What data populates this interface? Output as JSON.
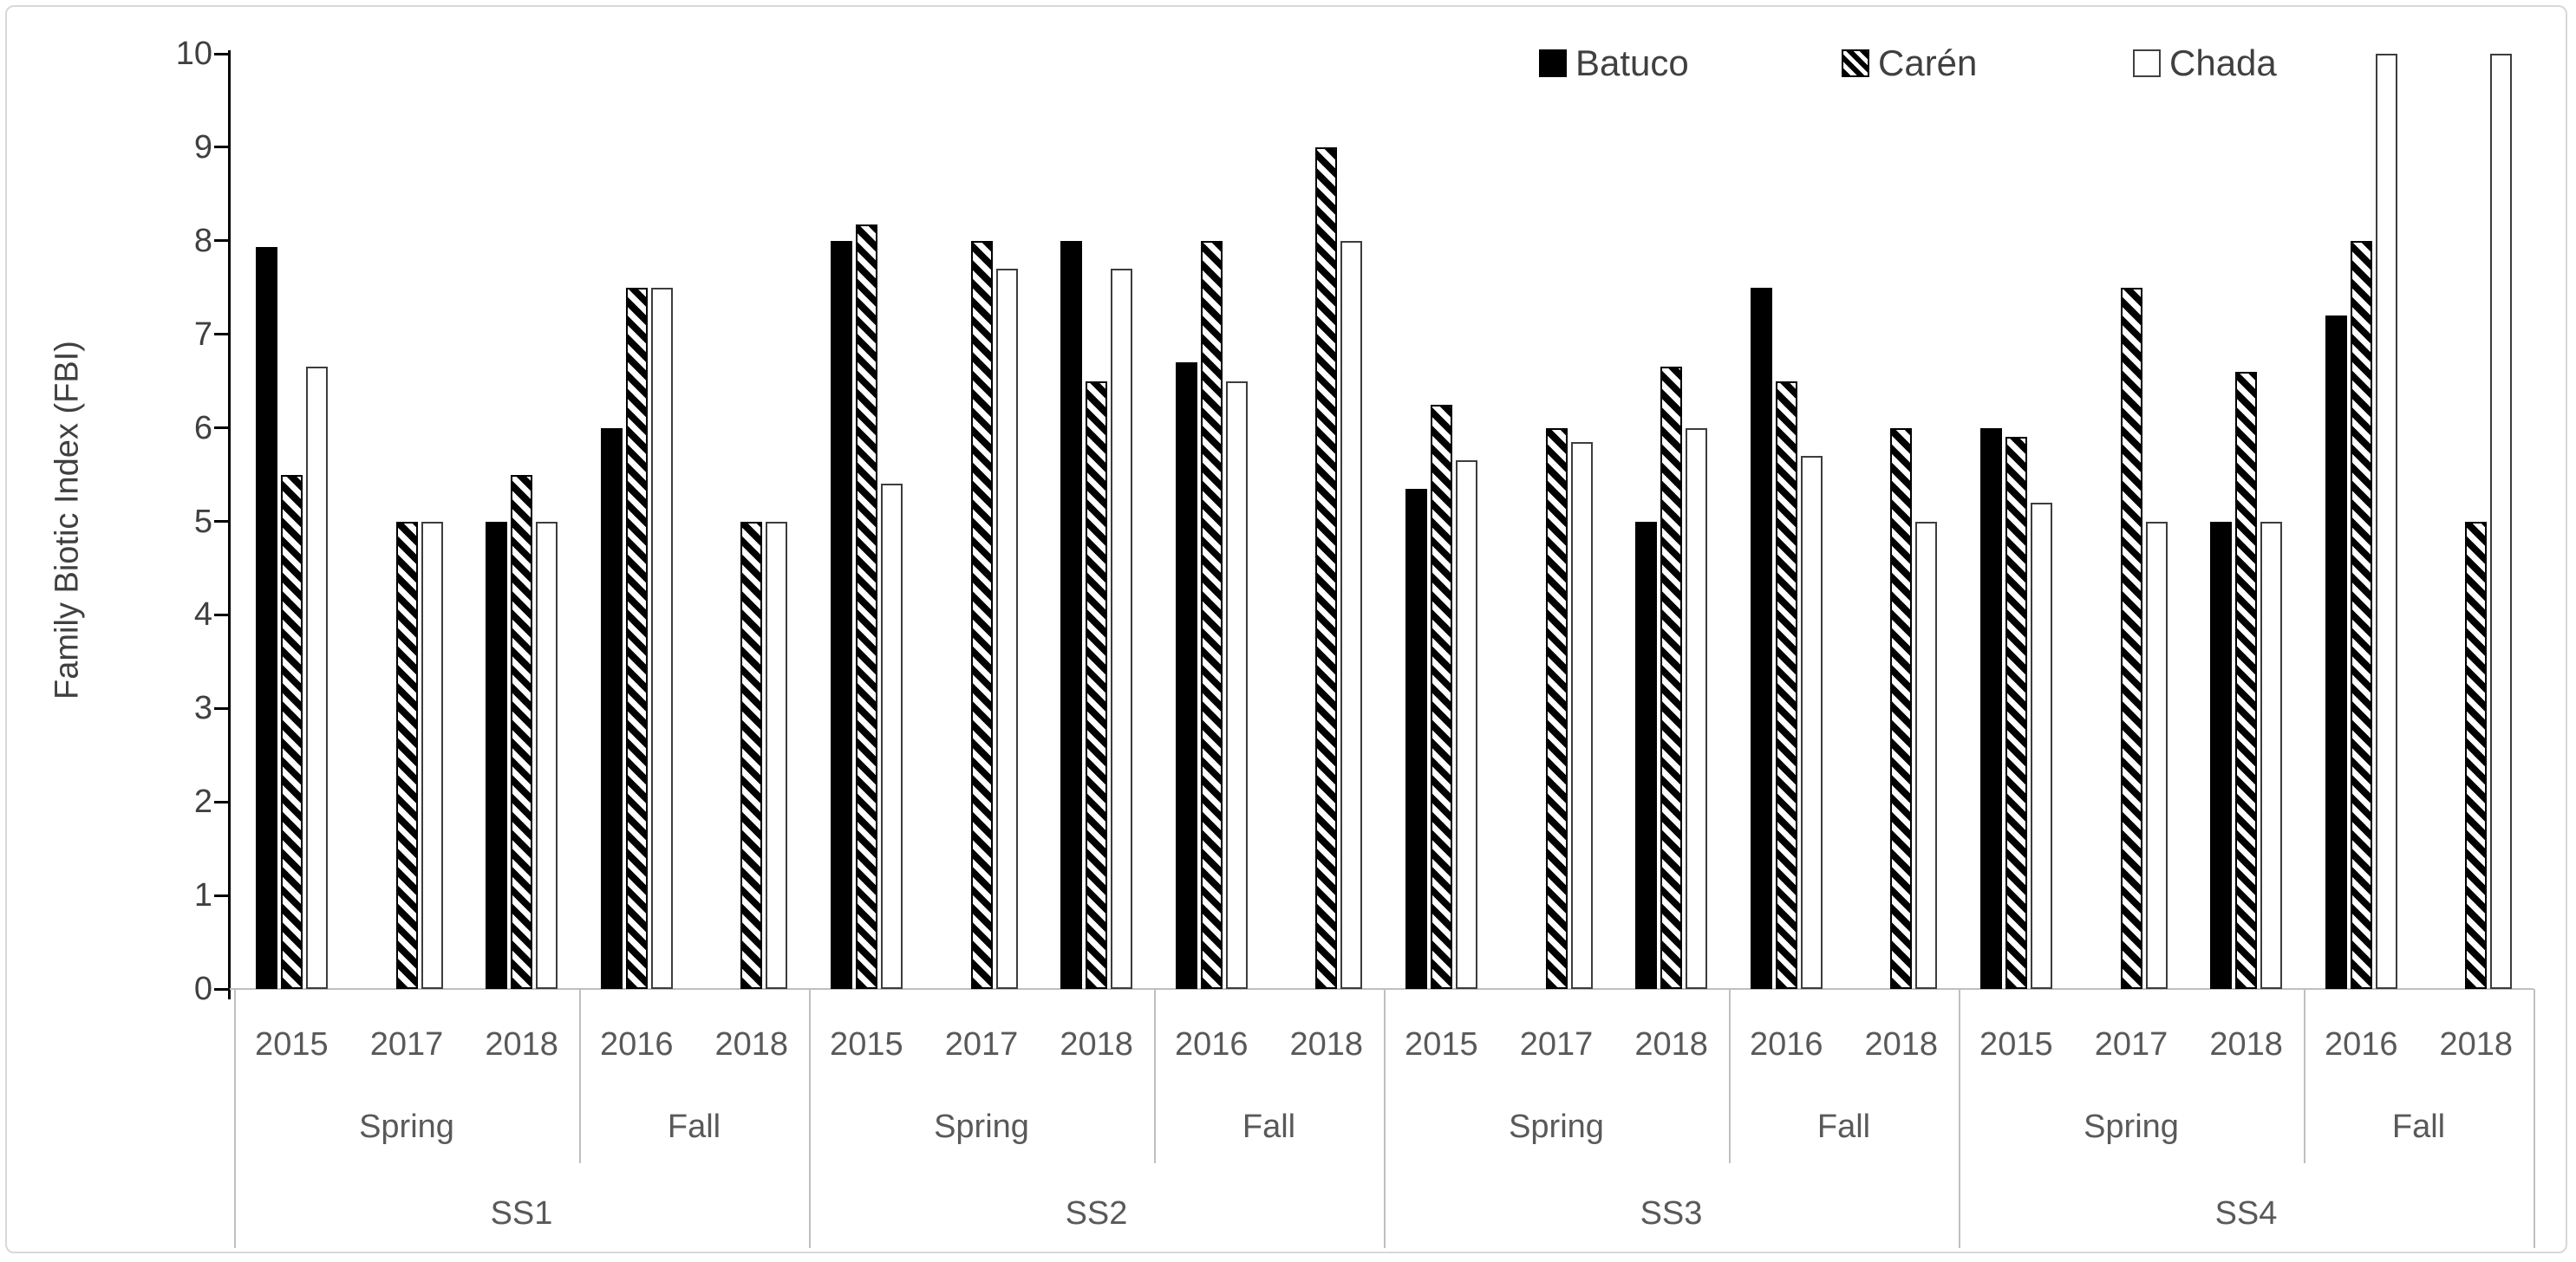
{
  "chart_data": {
    "type": "bar",
    "title": "",
    "xlabel": "",
    "ylabel": "Family Biotic Index (FBI)",
    "ylim": [
      0,
      10
    ],
    "yticks": [
      "0",
      "1",
      "2",
      "3",
      "4",
      "5",
      "6",
      "7",
      "8",
      "9",
      "10"
    ],
    "grid": false,
    "legend_position": "top-right",
    "series": [
      {
        "name": "Batuco",
        "fill": "solid-black"
      },
      {
        "name": "Carén",
        "fill": "diagonal-hatch"
      },
      {
        "name": "Chada",
        "fill": "white-outline"
      }
    ],
    "colors": {
      "bar_outline": "#000000",
      "separator": "#bfbfbf",
      "axis": "#000000",
      "tick_text": "#404040",
      "category_text": "#595959"
    },
    "sites": [
      {
        "label": "SS1",
        "seasons": [
          {
            "label": "Spring",
            "groups": [
              {
                "year": "2015",
                "values": {
                  "Batuco": 7.93,
                  "Caren": 5.5,
                  "Chada": 6.65
                }
              },
              {
                "year": "2017",
                "values": {
                  "Batuco": null,
                  "Caren": 5.0,
                  "Chada": 5.0
                }
              },
              {
                "year": "2018",
                "values": {
                  "Batuco": 5.0,
                  "Caren": 5.5,
                  "Chada": 5.0
                }
              }
            ]
          },
          {
            "label": "Fall",
            "groups": [
              {
                "year": "2016",
                "values": {
                  "Batuco": 6.0,
                  "Caren": 7.5,
                  "Chada": 7.5
                }
              },
              {
                "year": "2018",
                "values": {
                  "Batuco": null,
                  "Caren": 5.0,
                  "Chada": 5.0
                }
              }
            ]
          }
        ]
      },
      {
        "label": "SS2",
        "seasons": [
          {
            "label": "Spring",
            "groups": [
              {
                "year": "2015",
                "values": {
                  "Batuco": 8.0,
                  "Caren": 8.17,
                  "Chada": 5.4
                }
              },
              {
                "year": "2017",
                "values": {
                  "Batuco": null,
                  "Caren": 8.0,
                  "Chada": 7.7
                }
              },
              {
                "year": "2018",
                "values": {
                  "Batuco": 8.0,
                  "Caren": 6.5,
                  "Chada": 7.7
                }
              }
            ]
          },
          {
            "label": "Fall",
            "groups": [
              {
                "year": "2016",
                "values": {
                  "Batuco": 6.7,
                  "Caren": 8.0,
                  "Chada": 6.5
                }
              },
              {
                "year": "2018",
                "values": {
                  "Batuco": null,
                  "Caren": 9.0,
                  "Chada": 8.0
                }
              }
            ]
          }
        ]
      },
      {
        "label": "SS3",
        "seasons": [
          {
            "label": "Spring",
            "groups": [
              {
                "year": "2015",
                "values": {
                  "Batuco": 5.35,
                  "Caren": 6.25,
                  "Chada": 5.65
                }
              },
              {
                "year": "2017",
                "values": {
                  "Batuco": null,
                  "Caren": 6.0,
                  "Chada": 5.85
                }
              },
              {
                "year": "2018",
                "values": {
                  "Batuco": 5.0,
                  "Caren": 6.65,
                  "Chada": 6.0
                }
              }
            ]
          },
          {
            "label": "Fall",
            "groups": [
              {
                "year": "2016",
                "values": {
                  "Batuco": 7.5,
                  "Caren": 6.5,
                  "Chada": 5.7
                }
              },
              {
                "year": "2018",
                "values": {
                  "Batuco": null,
                  "Caren": 6.0,
                  "Chada": 5.0
                }
              }
            ]
          }
        ]
      },
      {
        "label": "SS4",
        "seasons": [
          {
            "label": "Spring",
            "groups": [
              {
                "year": "2015",
                "values": {
                  "Batuco": 6.0,
                  "Caren": 5.9,
                  "Chada": 5.2
                }
              },
              {
                "year": "2017",
                "values": {
                  "Batuco": null,
                  "Caren": 7.5,
                  "Chada": 5.0
                }
              },
              {
                "year": "2018",
                "values": {
                  "Batuco": 5.0,
                  "Caren": 6.6,
                  "Chada": 5.0
                }
              }
            ]
          },
          {
            "label": "Fall",
            "groups": [
              {
                "year": "2016",
                "values": {
                  "Batuco": 7.2,
                  "Caren": 8.0,
                  "Chada": 10.0
                }
              },
              {
                "year": "2018",
                "values": {
                  "Batuco": null,
                  "Caren": 5.0,
                  "Chada": 10.0
                }
              }
            ]
          }
        ]
      }
    ]
  }
}
